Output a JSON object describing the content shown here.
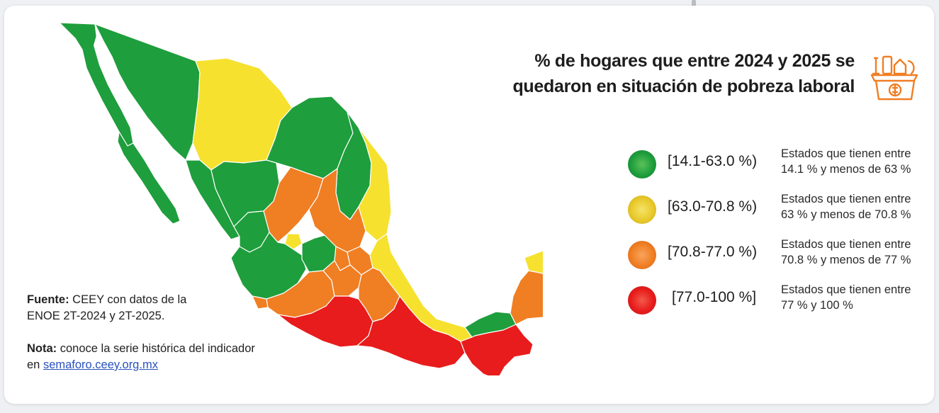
{
  "title": {
    "line1": "% de hogares que entre 2024 y 2025 se",
    "line2": "quedaron en situación de pobreza laboral"
  },
  "icon": "grocery-basket-icon",
  "legend": [
    {
      "range": "[14.1-63.0 %)",
      "desc_line1": "Estados que tienen entre",
      "desc_line2": "14.1 % y menos de 63 %",
      "color": "#1e9e3c"
    },
    {
      "range": "[63.0-70.8 %)",
      "desc_line1": "Estados que tienen entre",
      "desc_line2": "63 % y menos de 70.8 %",
      "color": "#e8d12a"
    },
    {
      "range": "[70.8-77.0 %)",
      "desc_line1": "Estados que tienen entre",
      "desc_line2": "70.8 % y menos de 77 %",
      "color": "#f07e23"
    },
    {
      "range": "[77.0-100 %]",
      "desc_line1": "Estados que tienen entre",
      "desc_line2": "77 % y 100 %",
      "color": "#e81c1c"
    }
  ],
  "source": {
    "fuente_label": "Fuente:",
    "fuente_text1": " CEEY con datos de la",
    "fuente_text2": "ENOE 2T-2024 y 2T-2025.",
    "nota_label": "Nota:",
    "nota_text1": " conoce la serie histórica del indicador",
    "nota_text2": "en ",
    "link": "semaforo.ceey.org.mx"
  },
  "colors": {
    "green": "#1e9e3c",
    "yellow": "#f6e12e",
    "orange": "#f07e23",
    "red": "#e81c1c"
  }
}
